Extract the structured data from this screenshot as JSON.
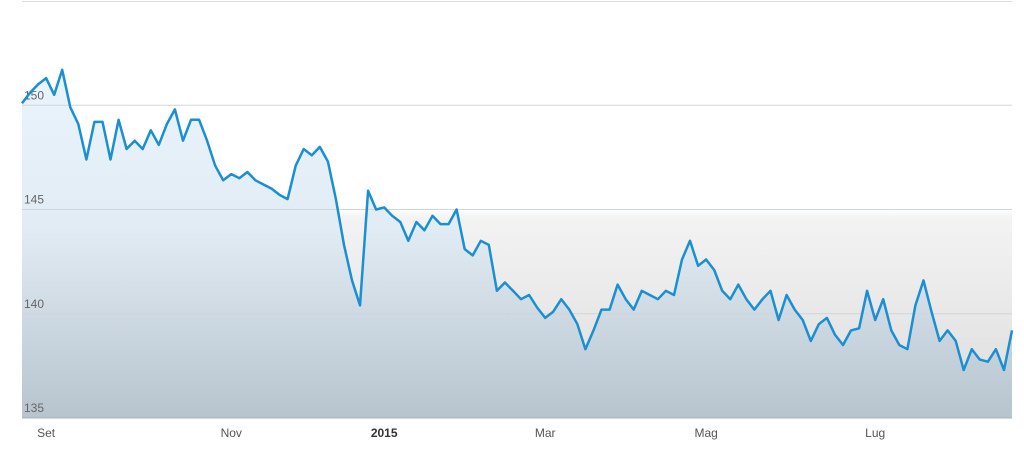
{
  "chart_data": {
    "type": "line",
    "categories": [
      null,
      null,
      null,
      "Set",
      null,
      null,
      null,
      null,
      null,
      null,
      null,
      null,
      null,
      null,
      null,
      null,
      null,
      null,
      null,
      null,
      null,
      null,
      null,
      null,
      null,
      null,
      "Nov",
      null,
      null,
      null,
      null,
      null,
      null,
      null,
      null,
      null,
      null,
      null,
      null,
      null,
      null,
      null,
      null,
      null,
      null,
      "2015",
      null,
      null,
      null,
      null,
      null,
      null,
      null,
      null,
      null,
      null,
      null,
      null,
      null,
      null,
      null,
      null,
      null,
      null,
      null,
      "Mar",
      null,
      null,
      null,
      null,
      null,
      null,
      null,
      null,
      null,
      null,
      null,
      null,
      null,
      null,
      null,
      null,
      null,
      null,
      null,
      "Mag",
      null,
      null,
      null,
      null,
      null,
      null,
      null,
      null,
      null,
      null,
      null,
      null,
      null,
      null,
      null,
      null,
      null,
      null,
      null,
      null,
      "Lug",
      null,
      null,
      null,
      null,
      null,
      null,
      null,
      null,
      null,
      null,
      null,
      null,
      null,
      null,
      null,
      null,
      null
    ],
    "values": [
      150.1,
      150.6,
      151.0,
      151.3,
      150.5,
      151.7,
      149.9,
      149.1,
      147.4,
      149.2,
      149.2,
      147.4,
      149.3,
      147.9,
      148.3,
      147.9,
      148.8,
      148.1,
      149.1,
      149.8,
      148.3,
      149.3,
      149.3,
      148.3,
      147.1,
      146.4,
      146.7,
      146.5,
      146.8,
      146.4,
      146.2,
      146.0,
      145.7,
      145.5,
      147.1,
      147.9,
      147.6,
      148.0,
      147.3,
      145.5,
      143.3,
      141.6,
      140.4,
      145.9,
      145.0,
      145.1,
      144.7,
      144.4,
      143.5,
      144.4,
      144.0,
      144.7,
      144.3,
      144.3,
      145.0,
      143.1,
      142.8,
      143.5,
      143.3,
      141.1,
      141.5,
      141.1,
      140.7,
      140.9,
      140.3,
      139.8,
      140.1,
      140.7,
      140.2,
      139.5,
      138.3,
      139.2,
      140.2,
      140.2,
      141.4,
      140.7,
      140.2,
      141.1,
      140.9,
      140.7,
      141.1,
      140.9,
      142.6,
      143.5,
      142.3,
      142.6,
      142.1,
      141.1,
      140.7,
      141.4,
      140.7,
      140.2,
      140.7,
      141.1,
      139.7,
      140.9,
      140.2,
      139.7,
      138.7,
      139.5,
      139.8,
      139.0,
      138.5,
      139.2,
      139.3,
      141.1,
      139.7,
      140.7,
      139.2,
      138.5,
      138.3,
      140.4,
      141.6,
      140.1,
      138.7,
      139.2,
      138.7,
      137.3,
      138.3,
      137.8,
      137.7,
      138.3,
      137.3,
      139.2
    ],
    "color": "#1a8fd1",
    "ylim": [
      135,
      155
    ],
    "yticks": [
      135,
      140,
      145,
      150
    ],
    "grid": true
  }
}
